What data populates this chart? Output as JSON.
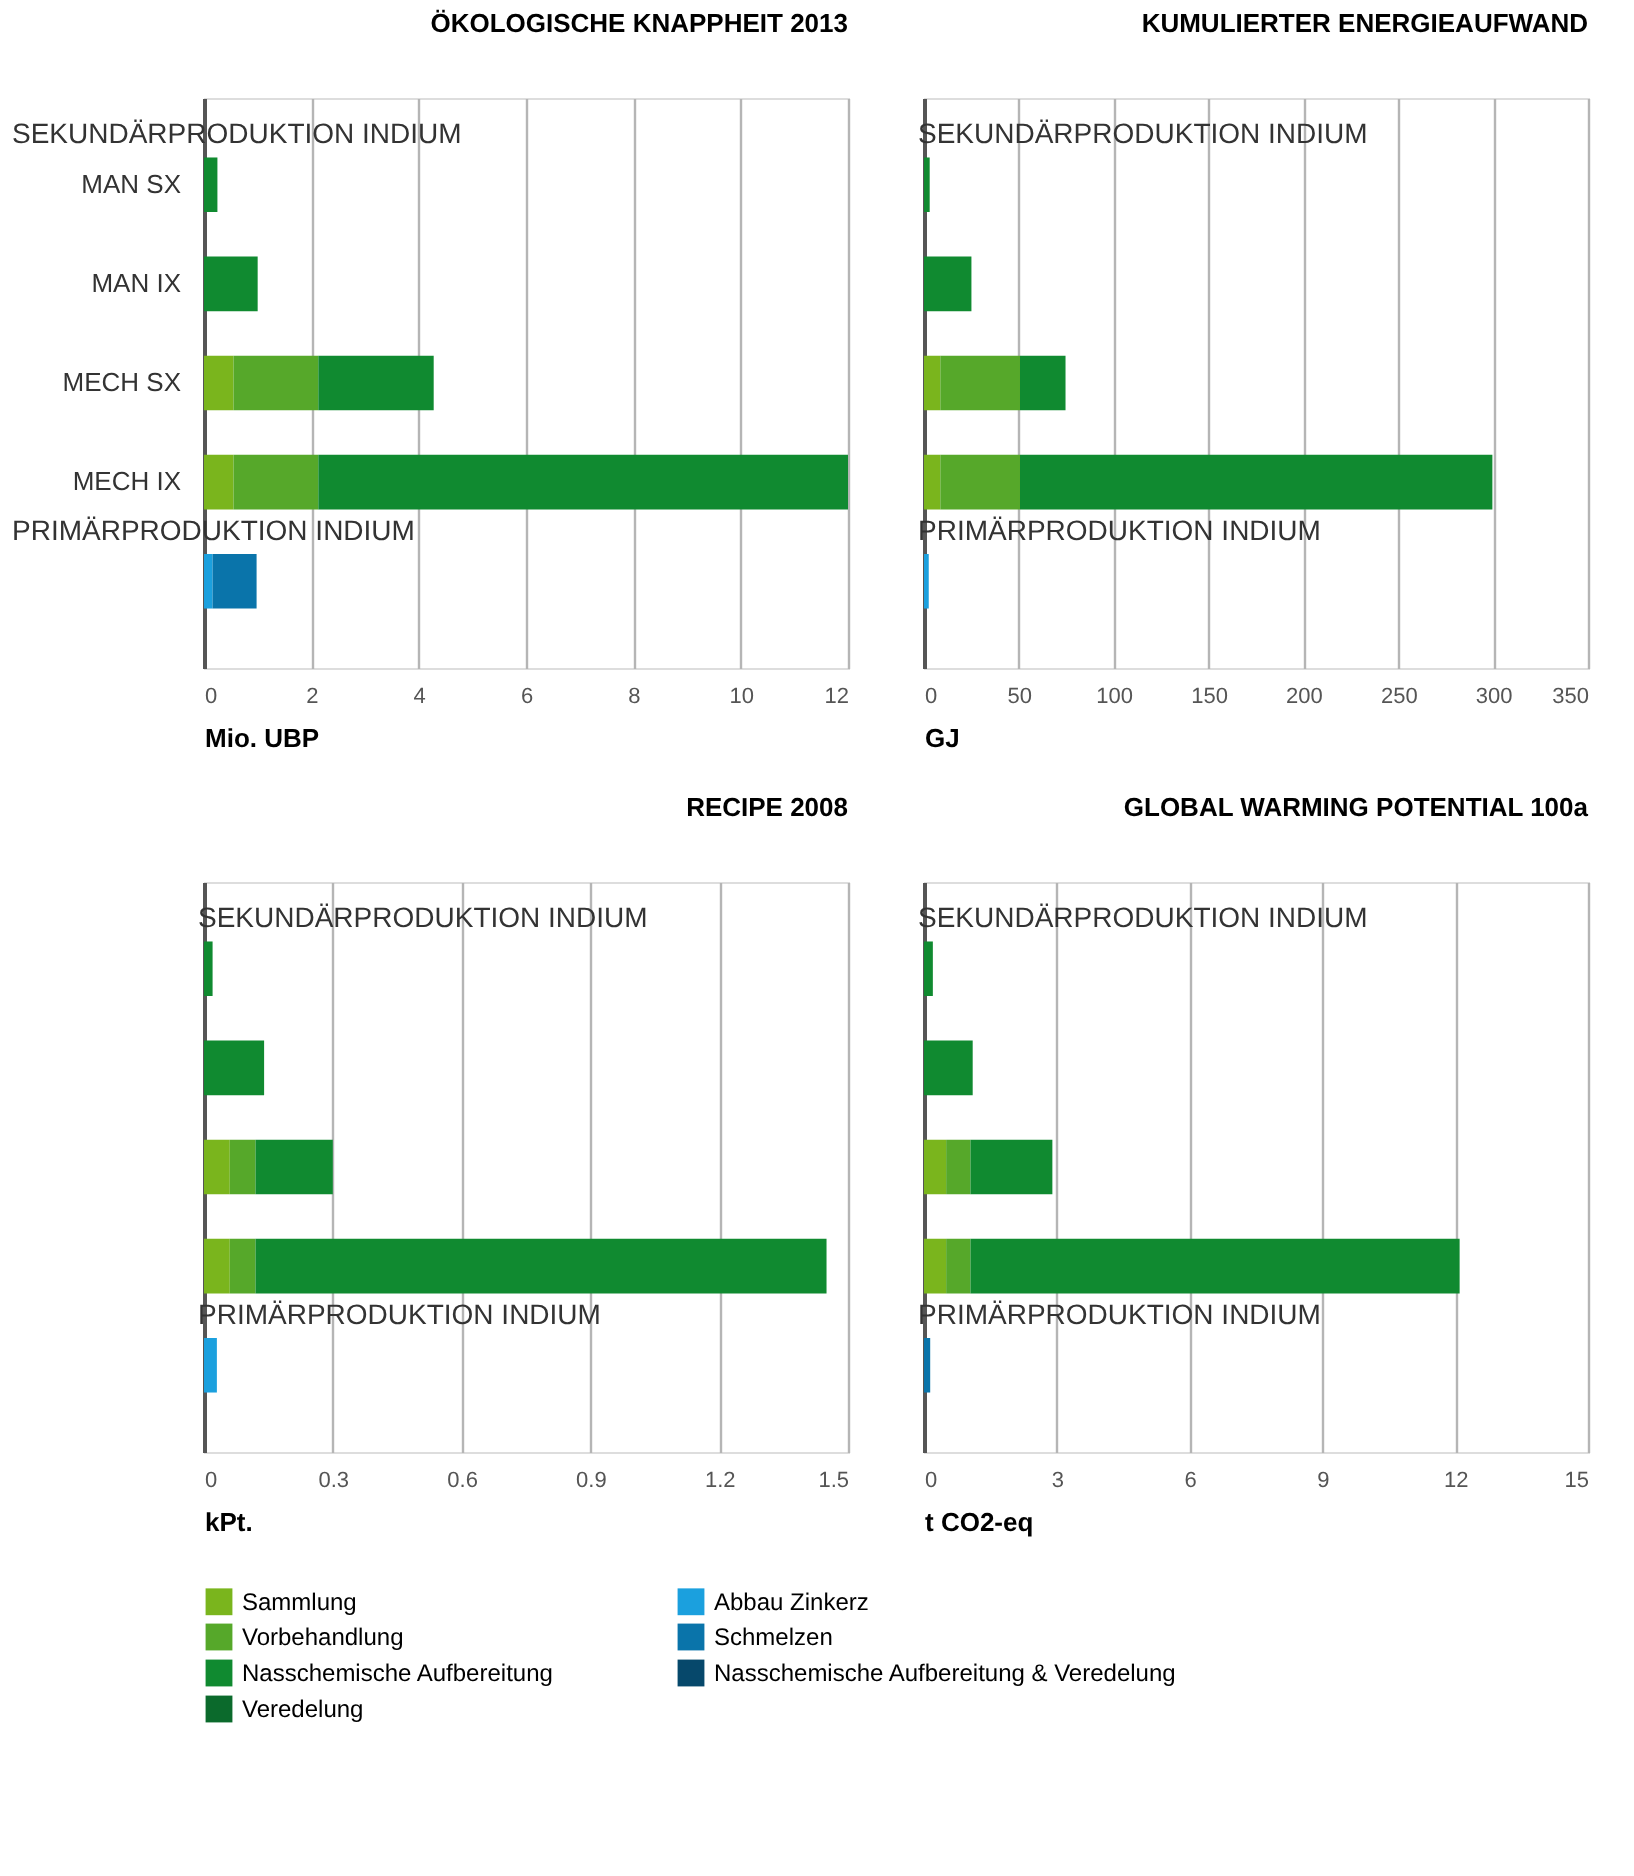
{
  "chart_data": [
    {
      "type": "bar",
      "orientation": "horizontal",
      "stacked": true,
      "title": "ÖKOLOGISCHE KNAPPHEIT 2013",
      "xlabel": "Mio. UBP",
      "categories": [
        "MAN SX",
        "MAN IX",
        "MECH SX",
        "MECH IX",
        null
      ],
      "xlim": [
        0,
        12
      ],
      "xticks": [
        0,
        2,
        4,
        6,
        8,
        10,
        12
      ],
      "grid": "x",
      "legend": false,
      "annotations": [
        "SEKUNDÄRPRODUKTION INDIUM",
        "PRIMÄRPRODUKTION INDIUM"
      ],
      "series": [
        {
          "color": "#7ab51d",
          "values": [
            null,
            null,
            0.55,
            0.55,
            null
          ]
        },
        {
          "color": "#56a82a",
          "values": [
            null,
            null,
            1.58,
            1.58,
            null
          ]
        },
        {
          "color": "#108a30",
          "values": [
            0.25,
            1.0,
            2.15,
            9.87,
            null
          ]
        },
        {
          "color": "#0b6a2c",
          "values": [
            null,
            null,
            null,
            null,
            null
          ]
        },
        {
          "color": "#1ba0de",
          "values": [
            null,
            null,
            null,
            null,
            0.16
          ]
        },
        {
          "color": "#0a74aa",
          "values": [
            null,
            null,
            null,
            null,
            0.82
          ]
        },
        {
          "color": "#06486b",
          "values": [
            null,
            null,
            null,
            null,
            null
          ]
        }
      ]
    },
    {
      "type": "bar",
      "orientation": "horizontal",
      "stacked": true,
      "title": "KUMULIERTER ENERGIEAUFWAND",
      "xlabel": "GJ",
      "categories": [
        null,
        null,
        null,
        null,
        null
      ],
      "xlim": [
        0,
        350
      ],
      "xticks": [
        0,
        50,
        100,
        150,
        200,
        250,
        300,
        350
      ],
      "grid": "x",
      "legend": false,
      "tick_labels": "x",
      "annotations": [
        "SEKUNDÄRPRODUKTION INDIUM",
        "PRIMÄRPRODUKTION INDIUM"
      ],
      "series": [
        {
          "color": "#7ab51d",
          "values": [
            null,
            null,
            8.6,
            8.6,
            null
          ]
        },
        {
          "color": "#56a82a",
          "values": [
            null,
            null,
            42,
            42,
            null
          ]
        },
        {
          "color": "#108a30",
          "values": [
            3,
            25,
            24,
            249,
            null
          ]
        },
        {
          "color": "#0b6a2c",
          "values": [
            null,
            null,
            null,
            null,
            null
          ]
        },
        {
          "color": "#1ba0de",
          "values": [
            null,
            null,
            null,
            null,
            2.5
          ]
        },
        {
          "color": "#0a74aa",
          "values": [
            null,
            null,
            null,
            null,
            null
          ]
        },
        {
          "color": "#06486b",
          "values": [
            null,
            null,
            null,
            null,
            null
          ]
        }
      ]
    },
    {
      "type": "bar",
      "orientation": "horizontal",
      "stacked": true,
      "title": "RECIPE 2008",
      "xlabel": "kPt.",
      "categories": [
        null,
        null,
        null,
        null,
        null
      ],
      "xlim": [
        0,
        1.5
      ],
      "xticks": [
        0,
        0.3,
        0.6,
        0.9,
        1.2,
        1.5
      ],
      "grid": "x",
      "legend": "bottom",
      "tick_labels": "x",
      "annotations": [
        "SEKUNDÄRPRODUKTION INDIUM",
        "PRIMÄRPRODUKTION INDIUM"
      ],
      "series": [
        {
          "name": "Sammlung",
          "color": "#7ab51d",
          "values": [
            null,
            null,
            0.06,
            0.06,
            null
          ]
        },
        {
          "name": "Vorbehandlung",
          "color": "#56a82a",
          "values": [
            null,
            null,
            0.06,
            0.06,
            null
          ]
        },
        {
          "name": "Nasschemische Aufbereitung",
          "color": "#108a30",
          "values": [
            0.02,
            0.14,
            0.18,
            1.33,
            null
          ]
        },
        {
          "name": "Veredelung",
          "color": "#0b6a2c",
          "values": [
            null,
            null,
            null,
            null,
            null
          ]
        },
        {
          "name": "Abbau Zinkerz",
          "color": "#1ba0de",
          "values": [
            null,
            null,
            null,
            null,
            0.03
          ]
        },
        {
          "name": "Schmelzen",
          "color": "#0a74aa",
          "values": [
            null,
            null,
            null,
            null,
            null
          ]
        },
        {
          "name": "Nasschemische Aufbereitung & Veredelung",
          "color": "#06486b",
          "values": [
            null,
            null,
            null,
            null,
            null
          ]
        }
      ]
    },
    {
      "type": "bar",
      "orientation": "horizontal",
      "stacked": true,
      "title": "GLOBAL WARMING POTENTIAL 100a",
      "xlabel": "t CO2-eq",
      "categories": [
        null,
        null,
        null,
        null,
        null
      ],
      "xlim": [
        0,
        15
      ],
      "xticks": [
        0,
        3,
        6,
        9,
        12,
        15
      ],
      "grid": "x",
      "legend": false,
      "tick_labels": "x",
      "annotations": [
        "SEKUNDÄRPRODUKTION INDIUM",
        "PRIMÄRPRODUKTION INDIUM"
      ],
      "series": [
        {
          "color": "#7ab51d",
          "values": [
            null,
            null,
            0.5,
            0.5,
            null
          ]
        },
        {
          "color": "#56a82a",
          "values": [
            null,
            null,
            0.55,
            0.55,
            null
          ]
        },
        {
          "color": "#108a30",
          "values": [
            0.2,
            1.1,
            1.85,
            11.05,
            null
          ]
        },
        {
          "color": "#0b6a2c",
          "values": [
            null,
            null,
            null,
            null,
            null
          ]
        },
        {
          "color": "#1ba0de",
          "values": [
            null,
            null,
            null,
            null,
            null
          ]
        },
        {
          "color": "#0a74aa",
          "values": [
            null,
            null,
            null,
            null,
            0.14
          ]
        },
        {
          "color": "#06486b",
          "values": [
            null,
            null,
            null,
            null,
            null
          ]
        }
      ]
    }
  ]
}
